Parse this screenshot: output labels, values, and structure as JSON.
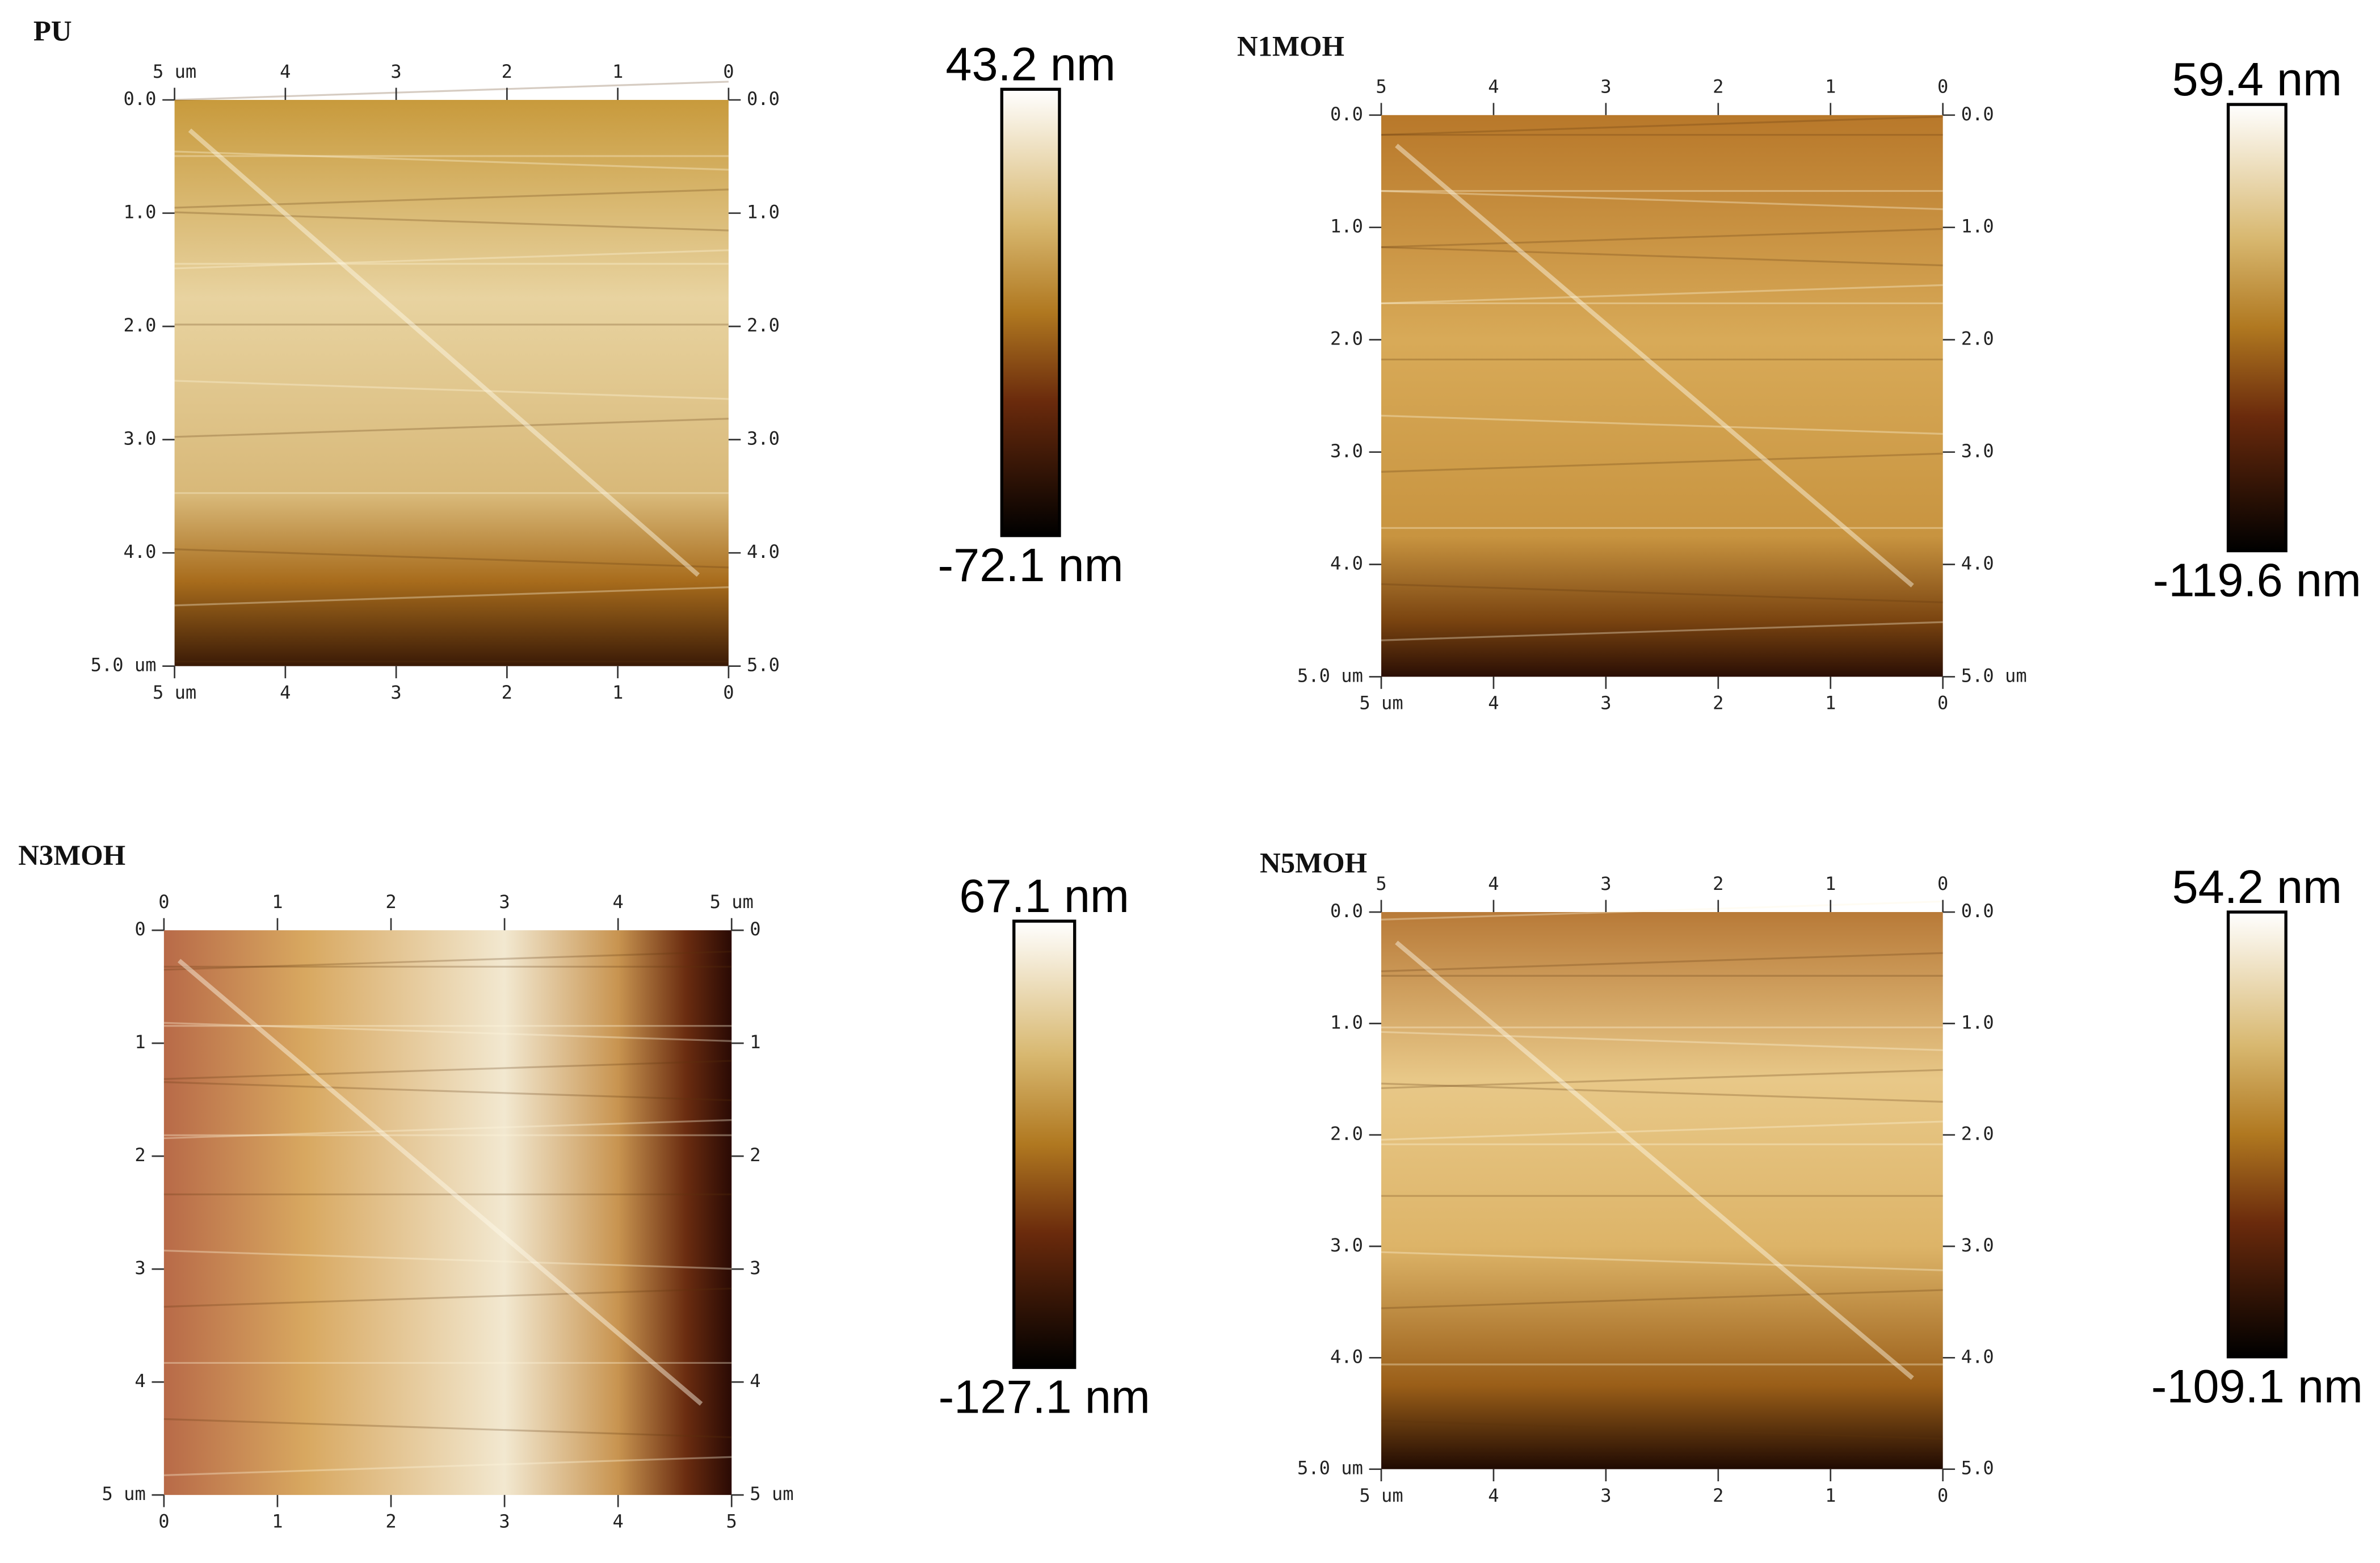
{
  "panels": [
    {
      "label": "PU",
      "top": [
        "5 um",
        "4",
        "3",
        "2",
        "1",
        "0"
      ],
      "bottom": [
        "5 um",
        "4",
        "3",
        "2",
        "1",
        "0"
      ],
      "left": [
        "0.0",
        "1.0",
        "2.0",
        "3.0",
        "4.0",
        "5.0 um"
      ],
      "right": [
        "0.0",
        "1.0",
        "2.0",
        "3.0",
        "4.0",
        "5.0"
      ],
      "scale_max": "43.2 nm",
      "scale_min": "-72.1 nm"
    },
    {
      "label": "N1MOH",
      "top": [
        "5",
        "4",
        "3",
        "2",
        "1",
        "0"
      ],
      "bottom": [
        "5 um",
        "4",
        "3",
        "2",
        "1",
        "0"
      ],
      "left": [
        "0.0",
        "1.0",
        "2.0",
        "3.0",
        "4.0",
        "5.0 um"
      ],
      "right": [
        "0.0",
        "1.0",
        "2.0",
        "3.0",
        "4.0",
        "5.0 um"
      ],
      "scale_max": "59.4 nm",
      "scale_min": "-119.6 nm"
    },
    {
      "label": "N3MOH",
      "top": [
        "0",
        "1",
        "2",
        "3",
        "4",
        "5 um"
      ],
      "bottom": [
        "0",
        "1",
        "2",
        "3",
        "4",
        "5"
      ],
      "left": [
        "0",
        "1",
        "2",
        "3",
        "4",
        "5 um"
      ],
      "right": [
        "0",
        "1",
        "2",
        "3",
        "4",
        "5 um"
      ],
      "scale_max": "67.1 nm",
      "scale_min": "-127.1 nm"
    },
    {
      "label": "N5MOH",
      "top": [
        "5",
        "4",
        "3",
        "2",
        "1",
        "0"
      ],
      "bottom": [
        "5 um",
        "4",
        "3",
        "2",
        "1",
        "0"
      ],
      "left": [
        "0.0",
        "1.0",
        "2.0",
        "3.0",
        "4.0",
        "5.0 um"
      ],
      "right": [
        "0.0",
        "1.0",
        "2.0",
        "3.0",
        "4.0",
        "5.0"
      ],
      "scale_max": "54.2 nm",
      "scale_min": "-109.1 nm"
    }
  ]
}
